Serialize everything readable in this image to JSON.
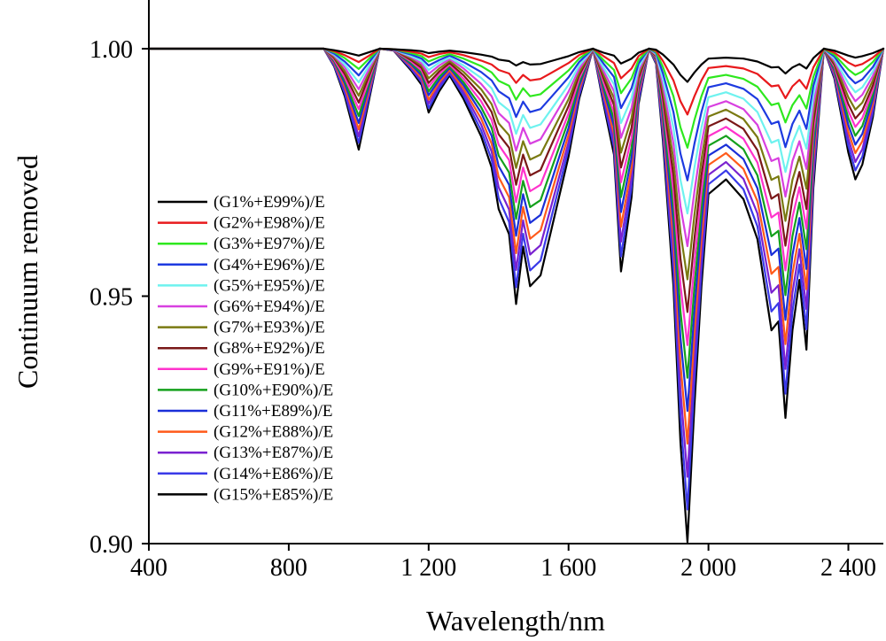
{
  "chart_data": {
    "type": "line",
    "title": "",
    "xlabel": "Wavelength/nm",
    "ylabel": "Continuum removed",
    "xlim": [
      400,
      2500
    ],
    "ylim": [
      0.9,
      1.01
    ],
    "x_ticks": [
      {
        "value": 400,
        "label": "400"
      },
      {
        "value": 800,
        "label": "800"
      },
      {
        "value": 1200,
        "label": "1 200"
      },
      {
        "value": 1600,
        "label": "1 600"
      },
      {
        "value": 2000,
        "label": "2 000"
      },
      {
        "value": 2400,
        "label": "2 400"
      }
    ],
    "y_ticks": [
      {
        "value": 0.9,
        "label": "0.90"
      },
      {
        "value": 0.95,
        "label": "0.95"
      },
      {
        "value": 1.0,
        "label": "1.00"
      }
    ],
    "grid": false,
    "legend_position": "left-middle",
    "x": [
      400,
      500,
      600,
      650,
      700,
      750,
      800,
      850,
      900,
      930,
      960,
      1000,
      1030,
      1060,
      1100,
      1150,
      1180,
      1200,
      1230,
      1260,
      1300,
      1350,
      1380,
      1400,
      1430,
      1450,
      1470,
      1490,
      1520,
      1550,
      1600,
      1630,
      1670,
      1700,
      1730,
      1750,
      1780,
      1800,
      1830,
      1850,
      1870,
      1900,
      1920,
      1940,
      1960,
      1980,
      2000,
      2050,
      2100,
      2140,
      2180,
      2200,
      2220,
      2240,
      2260,
      2280,
      2300,
      2330,
      2360,
      2400,
      2420,
      2440,
      2470,
      2500
    ],
    "series": [
      {
        "name": "(G1%+E99%)/E",
        "color": "#000000",
        "values": [
          1.0,
          1.0,
          1.0,
          1.0,
          1.0,
          1.0,
          1.0,
          1.0,
          1.0,
          0.9997,
          0.9993,
          0.9986,
          0.9993,
          1.0,
          0.9999,
          0.9997,
          0.9995,
          0.9991,
          0.9994,
          0.9996,
          0.9993,
          0.9988,
          0.9984,
          0.9978,
          0.9975,
          0.9966,
          0.9973,
          0.9968,
          0.9969,
          0.9975,
          0.9985,
          0.9993,
          1.0,
          0.9992,
          0.9986,
          0.997,
          0.998,
          0.9992,
          1.0,
          0.9998,
          0.9988,
          0.9968,
          0.9947,
          0.9933,
          0.9952,
          0.9968,
          0.998,
          0.9982,
          0.998,
          0.9974,
          0.9962,
          0.9963,
          0.995,
          0.9962,
          0.9969,
          0.996,
          0.9981,
          1.0,
          0.9996,
          0.9986,
          0.9982,
          0.9985,
          0.9991,
          1.0
        ]
      },
      {
        "name": "(G2%+E98%)/E",
        "color": "#e8191c",
        "values": [
          1.0,
          1.0,
          1.0,
          1.0,
          1.0,
          1.0,
          1.0,
          1.0,
          1.0,
          0.9995,
          0.9987,
          0.9973,
          0.9986,
          1.0,
          0.9999,
          0.9994,
          0.999,
          0.9983,
          0.9989,
          0.9993,
          0.9987,
          0.9976,
          0.9968,
          0.9957,
          0.995,
          0.9931,
          0.9947,
          0.9936,
          0.9939,
          0.9951,
          0.9971,
          0.9987,
          1.0,
          0.9985,
          0.9971,
          0.994,
          0.996,
          0.9985,
          1.0,
          0.9996,
          0.9975,
          0.9936,
          0.9894,
          0.9867,
          0.9904,
          0.9936,
          0.9961,
          0.9965,
          0.996,
          0.9949,
          0.9924,
          0.9926,
          0.99,
          0.9924,
          0.9937,
          0.9919,
          0.9962,
          1.0,
          0.9992,
          0.9972,
          0.9965,
          0.9969,
          0.9982,
          1.0
        ]
      },
      {
        "name": "(G3%+E97%)/E",
        "color": "#2ee81e",
        "values": [
          1.0,
          1.0,
          1.0,
          1.0,
          1.0,
          1.0,
          1.0,
          1.0,
          1.0,
          0.9993,
          0.9981,
          0.9959,
          0.998,
          1.0,
          0.9999,
          0.9991,
          0.9985,
          0.9974,
          0.9983,
          0.9989,
          0.998,
          0.9965,
          0.9952,
          0.9935,
          0.9925,
          0.9897,
          0.992,
          0.9904,
          0.9908,
          0.9926,
          0.9956,
          0.998,
          1.0,
          0.9977,
          0.9957,
          0.991,
          0.994,
          0.9977,
          1.0,
          0.9994,
          0.9963,
          0.9904,
          0.9841,
          0.98,
          0.9856,
          0.9904,
          0.9941,
          0.9947,
          0.9939,
          0.9923,
          0.9886,
          0.989,
          0.9851,
          0.9886,
          0.9906,
          0.9879,
          0.9943,
          1.0,
          0.9988,
          0.9958,
          0.9947,
          0.9954,
          0.9973,
          1.0
        ]
      },
      {
        "name": "(G4%+E96%)/E",
        "color": "#1d3ae0",
        "values": [
          1.0,
          1.0,
          1.0,
          1.0,
          1.0,
          1.0,
          1.0,
          1.0,
          1.0,
          0.999,
          0.9974,
          0.9946,
          0.9973,
          1.0,
          0.9998,
          0.9988,
          0.998,
          0.9966,
          0.9977,
          0.9986,
          0.9973,
          0.9953,
          0.9936,
          0.9914,
          0.99,
          0.9862,
          0.9893,
          0.9872,
          0.9878,
          0.9902,
          0.9942,
          0.9973,
          1.0,
          0.997,
          0.9943,
          0.988,
          0.992,
          0.997,
          1.0,
          0.9992,
          0.995,
          0.9872,
          0.9788,
          0.9734,
          0.9808,
          0.9872,
          0.9922,
          0.993,
          0.9919,
          0.9898,
          0.9848,
          0.9853,
          0.9801,
          0.9848,
          0.9875,
          0.9838,
          0.9925,
          1.0,
          0.9984,
          0.9944,
          0.993,
          0.9938,
          0.9963,
          1.0
        ]
      },
      {
        "name": "(G5%+E95%)/E",
        "color": "#6ef2ef",
        "values": [
          1.0,
          1.0,
          1.0,
          1.0,
          1.0,
          1.0,
          1.0,
          1.0,
          1.0,
          0.9988,
          0.9968,
          0.9932,
          0.9966,
          1.0,
          0.9998,
          0.9985,
          0.9975,
          0.9957,
          0.9972,
          0.9982,
          0.9966,
          0.9941,
          0.992,
          0.9892,
          0.9875,
          0.9828,
          0.9866,
          0.984,
          0.9847,
          0.9877,
          0.9927,
          0.9966,
          1.0,
          0.9962,
          0.9928,
          0.985,
          0.99,
          0.9962,
          1.0,
          0.999,
          0.9938,
          0.984,
          0.9735,
          0.9667,
          0.976,
          0.984,
          0.9902,
          0.9912,
          0.9899,
          0.9872,
          0.981,
          0.9816,
          0.9751,
          0.981,
          0.9844,
          0.9798,
          0.9906,
          1.0,
          0.998,
          0.993,
          0.9912,
          0.9922,
          0.9954,
          1.0
        ]
      },
      {
        "name": "(G6%+E94%)/E",
        "color": "#d840e0",
        "values": [
          1.0,
          1.0,
          1.0,
          1.0,
          1.0,
          1.0,
          1.0,
          1.0,
          1.0,
          0.9986,
          0.9962,
          0.9918,
          0.9959,
          1.0,
          0.9998,
          0.9983,
          0.997,
          0.9949,
          0.9966,
          0.9979,
          0.996,
          0.9929,
          0.9904,
          0.987,
          0.985,
          0.9794,
          0.984,
          0.9808,
          0.9817,
          0.9853,
          0.9913,
          0.9959,
          1.0,
          0.9955,
          0.9914,
          0.982,
          0.988,
          0.9955,
          1.0,
          0.9988,
          0.9926,
          0.9808,
          0.9682,
          0.9601,
          0.9712,
          0.9808,
          0.9882,
          0.9894,
          0.9878,
          0.9846,
          0.9773,
          0.9779,
          0.9701,
          0.9773,
          0.9813,
          0.9757,
          0.9887,
          1.0,
          0.9976,
          0.9916,
          0.9894,
          0.9907,
          0.9945,
          1.0
        ]
      },
      {
        "name": "(G7%+E93%)/E",
        "color": "#7a7a12",
        "values": [
          1.0,
          1.0,
          1.0,
          1.0,
          1.0,
          1.0,
          1.0,
          1.0,
          1.0,
          0.9983,
          0.9955,
          0.9905,
          0.9952,
          1.0,
          0.9998,
          0.998,
          0.9966,
          0.994,
          0.996,
          0.9975,
          0.9953,
          0.9918,
          0.9888,
          0.9849,
          0.9825,
          0.9759,
          0.9813,
          0.9776,
          0.9786,
          0.9828,
          0.9898,
          0.9952,
          1.0,
          0.9947,
          0.99,
          0.979,
          0.986,
          0.9947,
          1.0,
          0.9986,
          0.9913,
          0.9776,
          0.9629,
          0.9534,
          0.9664,
          0.9776,
          0.9863,
          0.9877,
          0.9858,
          0.9821,
          0.9735,
          0.9742,
          0.9652,
          0.9735,
          0.9782,
          0.9717,
          0.9868,
          1.0,
          0.9972,
          0.9902,
          0.9877,
          0.9891,
          0.9936,
          1.0
        ]
      },
      {
        "name": "(G8%+E92%)/E",
        "color": "#7a1818",
        "values": [
          1.0,
          1.0,
          1.0,
          1.0,
          1.0,
          1.0,
          1.0,
          1.0,
          1.0,
          0.9981,
          0.9949,
          0.9891,
          0.9946,
          1.0,
          0.9998,
          0.9977,
          0.9961,
          0.9931,
          0.9954,
          0.9971,
          0.9946,
          0.9906,
          0.9872,
          0.9827,
          0.98,
          0.9725,
          0.9786,
          0.9744,
          0.9755,
          0.9804,
          0.9884,
          0.9946,
          1.0,
          0.994,
          0.9886,
          0.976,
          0.984,
          0.994,
          1.0,
          0.9984,
          0.99,
          0.9744,
          0.9576,
          0.9468,
          0.9616,
          0.9744,
          0.9843,
          0.9859,
          0.9838,
          0.9795,
          0.9697,
          0.9706,
          0.9602,
          0.9697,
          0.9751,
          0.9676,
          0.985,
          1.0,
          0.9968,
          0.9888,
          0.9859,
          0.9875,
          0.9926,
          1.0
        ]
      },
      {
        "name": "(G9%+E91%)/E",
        "color": "#ff33cc",
        "values": [
          1.0,
          1.0,
          1.0,
          1.0,
          1.0,
          1.0,
          1.0,
          1.0,
          1.0,
          0.9978,
          0.9942,
          0.9878,
          0.9939,
          1.0,
          0.9997,
          0.9974,
          0.9956,
          0.9923,
          0.9949,
          0.9968,
          0.9939,
          0.9894,
          0.9856,
          0.9806,
          0.9775,
          0.969,
          0.976,
          0.9712,
          0.9725,
          0.9779,
          0.9869,
          0.9939,
          1.0,
          0.9932,
          0.9871,
          0.973,
          0.982,
          0.9932,
          1.0,
          0.9982,
          0.9888,
          0.9712,
          0.9523,
          0.9401,
          0.9568,
          0.9712,
          0.9823,
          0.9842,
          0.9818,
          0.977,
          0.9659,
          0.9669,
          0.9552,
          0.9659,
          0.972,
          0.9636,
          0.9831,
          1.0,
          0.9964,
          0.9874,
          0.9842,
          0.986,
          0.9917,
          1.0
        ]
      },
      {
        "name": "(G10%+E90%)/E",
        "color": "#14a01c",
        "values": [
          1.0,
          1.0,
          1.0,
          1.0,
          1.0,
          1.0,
          1.0,
          1.0,
          1.0,
          0.9976,
          0.9936,
          0.9864,
          0.9932,
          1.0,
          0.9997,
          0.9971,
          0.9951,
          0.9914,
          0.9943,
          0.9964,
          0.9932,
          0.9882,
          0.984,
          0.9784,
          0.975,
          0.9656,
          0.9733,
          0.968,
          0.9694,
          0.9755,
          0.9855,
          0.9932,
          1.0,
          0.9925,
          0.9857,
          0.97,
          0.98,
          0.9925,
          1.0,
          0.998,
          0.9875,
          0.968,
          0.947,
          0.9335,
          0.952,
          0.968,
          0.9804,
          0.9824,
          0.9797,
          0.9744,
          0.9621,
          0.9632,
          0.9502,
          0.9621,
          0.9689,
          0.9595,
          0.9812,
          1.0,
          0.996,
          0.986,
          0.9824,
          0.9844,
          0.9908,
          1.0
        ]
      },
      {
        "name": "(G11%+E89%)/E",
        "color": "#1a2fd8",
        "values": [
          1.0,
          1.0,
          1.0,
          1.0,
          1.0,
          1.0,
          1.0,
          1.0,
          1.0,
          0.9974,
          0.993,
          0.985,
          0.9925,
          1.0,
          0.9997,
          0.9968,
          0.9946,
          0.9906,
          0.9937,
          0.9961,
          0.9926,
          0.9871,
          0.9824,
          0.9763,
          0.9725,
          0.9622,
          0.9706,
          0.9648,
          0.9664,
          0.973,
          0.984,
          0.9925,
          1.0,
          0.9918,
          0.9843,
          0.967,
          0.978,
          0.9918,
          1.0,
          0.9978,
          0.9862,
          0.9648,
          0.9417,
          0.9268,
          0.9472,
          0.9648,
          0.9784,
          0.9806,
          0.9777,
          0.9718,
          0.9583,
          0.9596,
          0.9452,
          0.9583,
          0.9658,
          0.9555,
          0.9794,
          1.0,
          0.9956,
          0.9846,
          0.9806,
          0.9828,
          0.9898,
          1.0
        ]
      },
      {
        "name": "(G12%+E88%)/E",
        "color": "#ff5a1a",
        "values": [
          1.0,
          1.0,
          1.0,
          1.0,
          1.0,
          1.0,
          1.0,
          1.0,
          1.0,
          0.9971,
          0.9923,
          0.9837,
          0.9918,
          1.0,
          0.9997,
          0.9965,
          0.9941,
          0.9897,
          0.9932,
          0.9957,
          0.9919,
          0.9859,
          0.9808,
          0.9741,
          0.97,
          0.9587,
          0.968,
          0.9616,
          0.9633,
          0.9706,
          0.9826,
          0.9918,
          1.0,
          0.991,
          0.9828,
          0.964,
          0.976,
          0.991,
          1.0,
          0.9976,
          0.985,
          0.9616,
          0.9364,
          0.9202,
          0.9424,
          0.9616,
          0.9765,
          0.9789,
          0.9757,
          0.9692,
          0.9545,
          0.9559,
          0.9403,
          0.9545,
          0.9626,
          0.9514,
          0.9775,
          1.0,
          0.9952,
          0.9832,
          0.9789,
          0.9813,
          0.9889,
          1.0
        ]
      },
      {
        "name": "(G13%+E87%)/E",
        "color": "#7a22d0",
        "values": [
          1.0,
          1.0,
          1.0,
          1.0,
          1.0,
          1.0,
          1.0,
          1.0,
          1.0,
          0.9969,
          0.9917,
          0.9823,
          0.9912,
          1.0,
          0.9997,
          0.9962,
          0.9936,
          0.9889,
          0.9926,
          0.9954,
          0.9912,
          0.9847,
          0.9792,
          0.972,
          0.9675,
          0.9553,
          0.9653,
          0.9584,
          0.9603,
          0.9681,
          0.9811,
          0.9912,
          1.0,
          0.9903,
          0.9814,
          0.961,
          0.974,
          0.9903,
          1.0,
          0.9974,
          0.9838,
          0.9584,
          0.9311,
          0.9135,
          0.9376,
          0.9584,
          0.9745,
          0.9771,
          0.9737,
          0.9667,
          0.9507,
          0.9522,
          0.9353,
          0.9507,
          0.9595,
          0.9474,
          0.9756,
          1.0,
          0.9948,
          0.9818,
          0.9771,
          0.9797,
          0.988,
          1.0
        ]
      },
      {
        "name": "(G14%+E86%)/E",
        "color": "#3a3ae8",
        "values": [
          1.0,
          1.0,
          1.0,
          1.0,
          1.0,
          1.0,
          1.0,
          1.0,
          1.0,
          0.9966,
          0.991,
          0.981,
          0.9905,
          1.0,
          0.9997,
          0.9959,
          0.9932,
          0.988,
          0.992,
          0.995,
          0.9905,
          0.9835,
          0.9776,
          0.9698,
          0.965,
          0.9518,
          0.9626,
          0.9552,
          0.9572,
          0.9657,
          0.9797,
          0.9905,
          1.0,
          0.9895,
          0.98,
          0.958,
          0.972,
          0.9895,
          1.0,
          0.9972,
          0.9825,
          0.9552,
          0.9258,
          0.9069,
          0.9328,
          0.9552,
          0.9726,
          0.9754,
          0.9716,
          0.9641,
          0.9469,
          0.9486,
          0.9303,
          0.9469,
          0.9564,
          0.9433,
          0.9737,
          1.0,
          0.9944,
          0.9804,
          0.9754,
          0.9782,
          0.9871,
          1.0
        ]
      },
      {
        "name": "(G15%+E85%)/E",
        "color": "#000000",
        "values": [
          1.0,
          1.0,
          1.0,
          1.0,
          1.0,
          1.0,
          1.0,
          1.0,
          1.0,
          0.9964,
          0.9904,
          0.9796,
          0.9898,
          1.0,
          0.9996,
          0.9956,
          0.9927,
          0.9871,
          0.9914,
          0.9946,
          0.9898,
          0.9823,
          0.976,
          0.9676,
          0.9625,
          0.9484,
          0.96,
          0.952,
          0.9542,
          0.9632,
          0.9782,
          0.9898,
          1.0,
          0.9888,
          0.9786,
          0.955,
          0.97,
          0.9888,
          1.0,
          0.997,
          0.9812,
          0.952,
          0.9205,
          0.9003,
          0.928,
          0.952,
          0.9706,
          0.9736,
          0.9696,
          0.9615,
          0.9431,
          0.9449,
          0.9254,
          0.9431,
          0.9533,
          0.9392,
          0.9718,
          1.0,
          0.994,
          0.979,
          0.9736,
          0.9766,
          0.9862,
          1.0
        ]
      }
    ]
  }
}
